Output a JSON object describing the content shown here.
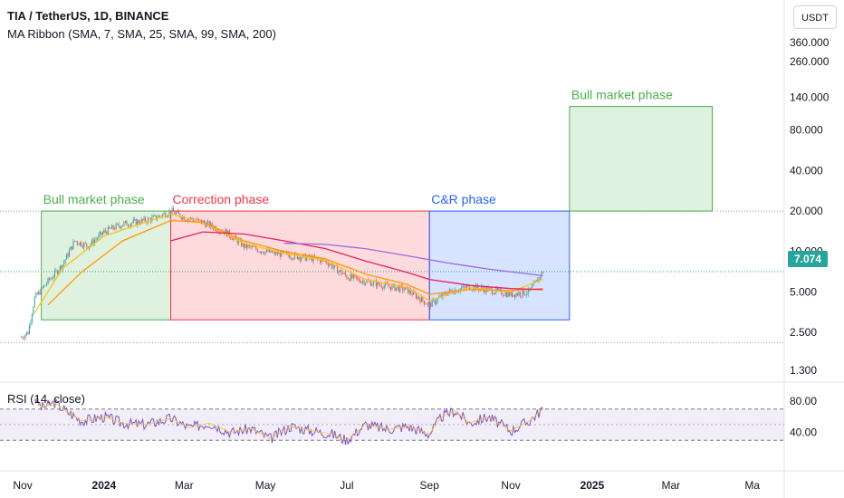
{
  "header": {
    "title": "TIA / TetherUS, 1D, BINANCE",
    "indicator": "MA Ribbon (SMA, 7, SMA, 25, SMA, 99, SMA, 200)",
    "currency_button": "USDT",
    "rsi_label": "RSI (14, close)",
    "last_price": "7.074"
  },
  "colors": {
    "bull": "#4caf50",
    "correction": "#f23645",
    "cr": "#2962ff",
    "price_tag": "#26a69a",
    "ma7": "#f7c325",
    "ma25": "#ff9800",
    "ma99": "#e91e63",
    "ma200": "#9c6ade",
    "rsi": "#7e57c2"
  },
  "chart_data": {
    "type": "line",
    "price_axis": {
      "scale": "log",
      "ticks": [
        "360.000",
        "260.000",
        "140.000",
        "80.000",
        "40.000",
        "20.000",
        "10.000",
        "5.000",
        "2.500",
        "1.300"
      ]
    },
    "time_axis": {
      "ticks": [
        "Nov",
        "2024",
        "Mar",
        "May",
        "Jul",
        "Sep",
        "Nov",
        "2025",
        "Mar",
        "Ma"
      ]
    },
    "rsi_axis": {
      "ticks": [
        "80.00",
        "40.00"
      ],
      "range": [
        0,
        100
      ],
      "bands": [
        30,
        70
      ]
    },
    "zones": [
      {
        "label": "Bull market phase",
        "start": "2023-11-15",
        "end": "2024-02-20",
        "low": 3.1,
        "high": 20.0,
        "color": "#4caf50"
      },
      {
        "label": "Correction phase",
        "start": "2024-02-20",
        "end": "2024-09-01",
        "low": 3.1,
        "high": 20.0,
        "color": "#f23645"
      },
      {
        "label": "C&R phase",
        "start": "2024-09-01",
        "end": "2024-12-15",
        "low": 3.1,
        "high": 20.0,
        "color": "#2962ff"
      },
      {
        "label": "Bull market phase",
        "start": "2024-12-15",
        "end": "2025-04-01",
        "low": 20.0,
        "high": 120.0,
        "color": "#4caf50"
      }
    ],
    "series": [
      {
        "name": "TIA / TetherUS",
        "color": "#26a69a",
        "x": [
          "2023-10-31",
          "2023-11-05",
          "2023-11-10",
          "2023-11-20",
          "2023-12-01",
          "2023-12-10",
          "2023-12-20",
          "2024-01-01",
          "2024-01-15",
          "2024-02-01",
          "2024-02-10",
          "2024-02-20",
          "2024-03-01",
          "2024-03-15",
          "2024-04-01",
          "2024-04-15",
          "2024-05-01",
          "2024-05-15",
          "2024-06-01",
          "2024-06-15",
          "2024-07-01",
          "2024-07-15",
          "2024-08-01",
          "2024-08-15",
          "2024-09-01",
          "2024-09-15",
          "2024-10-01",
          "2024-10-15",
          "2024-11-01",
          "2024-11-15",
          "2024-11-25"
        ],
        "y": [
          2.3,
          2.5,
          4.5,
          6.0,
          8.0,
          12.0,
          11.0,
          14.0,
          16.0,
          17.0,
          18.0,
          20.0,
          18.0,
          16.5,
          14.0,
          11.0,
          10.0,
          9.5,
          9.0,
          8.5,
          6.5,
          6.0,
          5.5,
          5.2,
          4.0,
          5.0,
          5.5,
          5.2,
          4.8,
          5.0,
          7.074
        ]
      },
      {
        "name": "SMA 7",
        "color": "#f7c325",
        "x": [
          "2023-11-10",
          "2023-12-01",
          "2024-01-01",
          "2024-02-01",
          "2024-02-20",
          "2024-03-15",
          "2024-04-15",
          "2024-05-15",
          "2024-06-15",
          "2024-07-15",
          "2024-08-15",
          "2024-09-01",
          "2024-10-01",
          "2024-11-01",
          "2024-11-25"
        ],
        "y": [
          3.5,
          7.5,
          13.0,
          16.5,
          19.0,
          16.5,
          11.5,
          9.7,
          8.6,
          6.2,
          5.4,
          4.3,
          5.4,
          5.0,
          6.2
        ]
      },
      {
        "name": "SMA 25",
        "color": "#ff9800",
        "x": [
          "2023-11-20",
          "2023-12-15",
          "2024-01-15",
          "2024-02-20",
          "2024-03-15",
          "2024-04-15",
          "2024-05-15",
          "2024-06-15",
          "2024-07-15",
          "2024-08-15",
          "2024-09-01",
          "2024-10-01",
          "2024-11-01",
          "2024-11-25"
        ],
        "y": [
          4.0,
          7.0,
          12.0,
          17.0,
          16.5,
          12.0,
          10.0,
          8.8,
          6.8,
          5.7,
          4.8,
          5.2,
          5.1,
          5.3
        ]
      },
      {
        "name": "SMA 99",
        "color": "#e91e63",
        "x": [
          "2024-02-20",
          "2024-03-15",
          "2024-04-15",
          "2024-05-15",
          "2024-06-15",
          "2024-07-15",
          "2024-08-15",
          "2024-09-01",
          "2024-10-01",
          "2024-11-01",
          "2024-11-25"
        ],
        "y": [
          12.0,
          14.0,
          13.5,
          12.0,
          10.5,
          8.5,
          7.0,
          6.2,
          5.6,
          5.3,
          5.2
        ]
      },
      {
        "name": "SMA 200",
        "color": "#9c6ade",
        "x": [
          "2024-05-15",
          "2024-06-15",
          "2024-07-15",
          "2024-08-15",
          "2024-09-15",
          "2024-10-15",
          "2024-11-15",
          "2024-11-25"
        ],
        "y": [
          11.5,
          11.3,
          10.5,
          9.3,
          8.2,
          7.4,
          6.8,
          6.6
        ]
      },
      {
        "name": "RSI (14, close)",
        "color": "#7e57c2",
        "x": [
          "2023-11-10",
          "2023-11-15",
          "2023-11-25",
          "2023-12-05",
          "2023-12-15",
          "2024-01-01",
          "2024-01-15",
          "2024-02-01",
          "2024-02-20",
          "2024-03-05",
          "2024-03-20",
          "2024-04-05",
          "2024-04-20",
          "2024-05-05",
          "2024-05-20",
          "2024-06-05",
          "2024-06-20",
          "2024-07-01",
          "2024-07-15",
          "2024-08-01",
          "2024-08-15",
          "2024-09-01",
          "2024-09-10",
          "2024-09-20",
          "2024-10-01",
          "2024-10-15",
          "2024-11-01",
          "2024-11-15",
          "2024-11-25"
        ],
        "y": [
          85,
          72,
          78,
          66,
          55,
          60,
          52,
          50,
          58,
          46,
          52,
          40,
          45,
          32,
          48,
          42,
          38,
          30,
          50,
          44,
          48,
          38,
          60,
          68,
          52,
          60,
          42,
          55,
          70
        ]
      }
    ]
  }
}
